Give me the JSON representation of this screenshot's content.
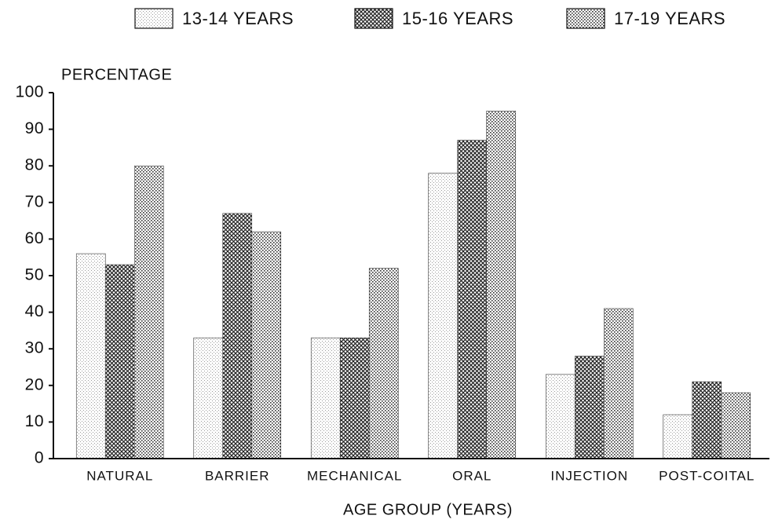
{
  "chart_data": {
    "type": "bar",
    "y_label": "PERCENTAGE",
    "x_label": "AGE GROUP (YEARS)",
    "categories": [
      "NATURAL",
      "BARRIER",
      "MECHANICAL",
      "ORAL",
      "INJECTION",
      "POST-COITAL"
    ],
    "series": [
      {
        "name": "13-14 YEARS",
        "color": "#9a9a9a",
        "values": [
          56,
          33,
          33,
          78,
          23,
          12
        ]
      },
      {
        "name": "15-16 YEARS",
        "color": "#222222",
        "values": [
          53,
          67,
          33,
          87,
          28,
          21
        ]
      },
      {
        "name": "17-19 YEARS",
        "color": "#333333",
        "values": [
          80,
          62,
          52,
          95,
          41,
          18
        ]
      }
    ],
    "ylim": [
      0,
      100
    ],
    "yticks": [
      0,
      10,
      20,
      30,
      40,
      50,
      60,
      70,
      80,
      90,
      100
    ],
    "grid": false,
    "legend": "top"
  }
}
